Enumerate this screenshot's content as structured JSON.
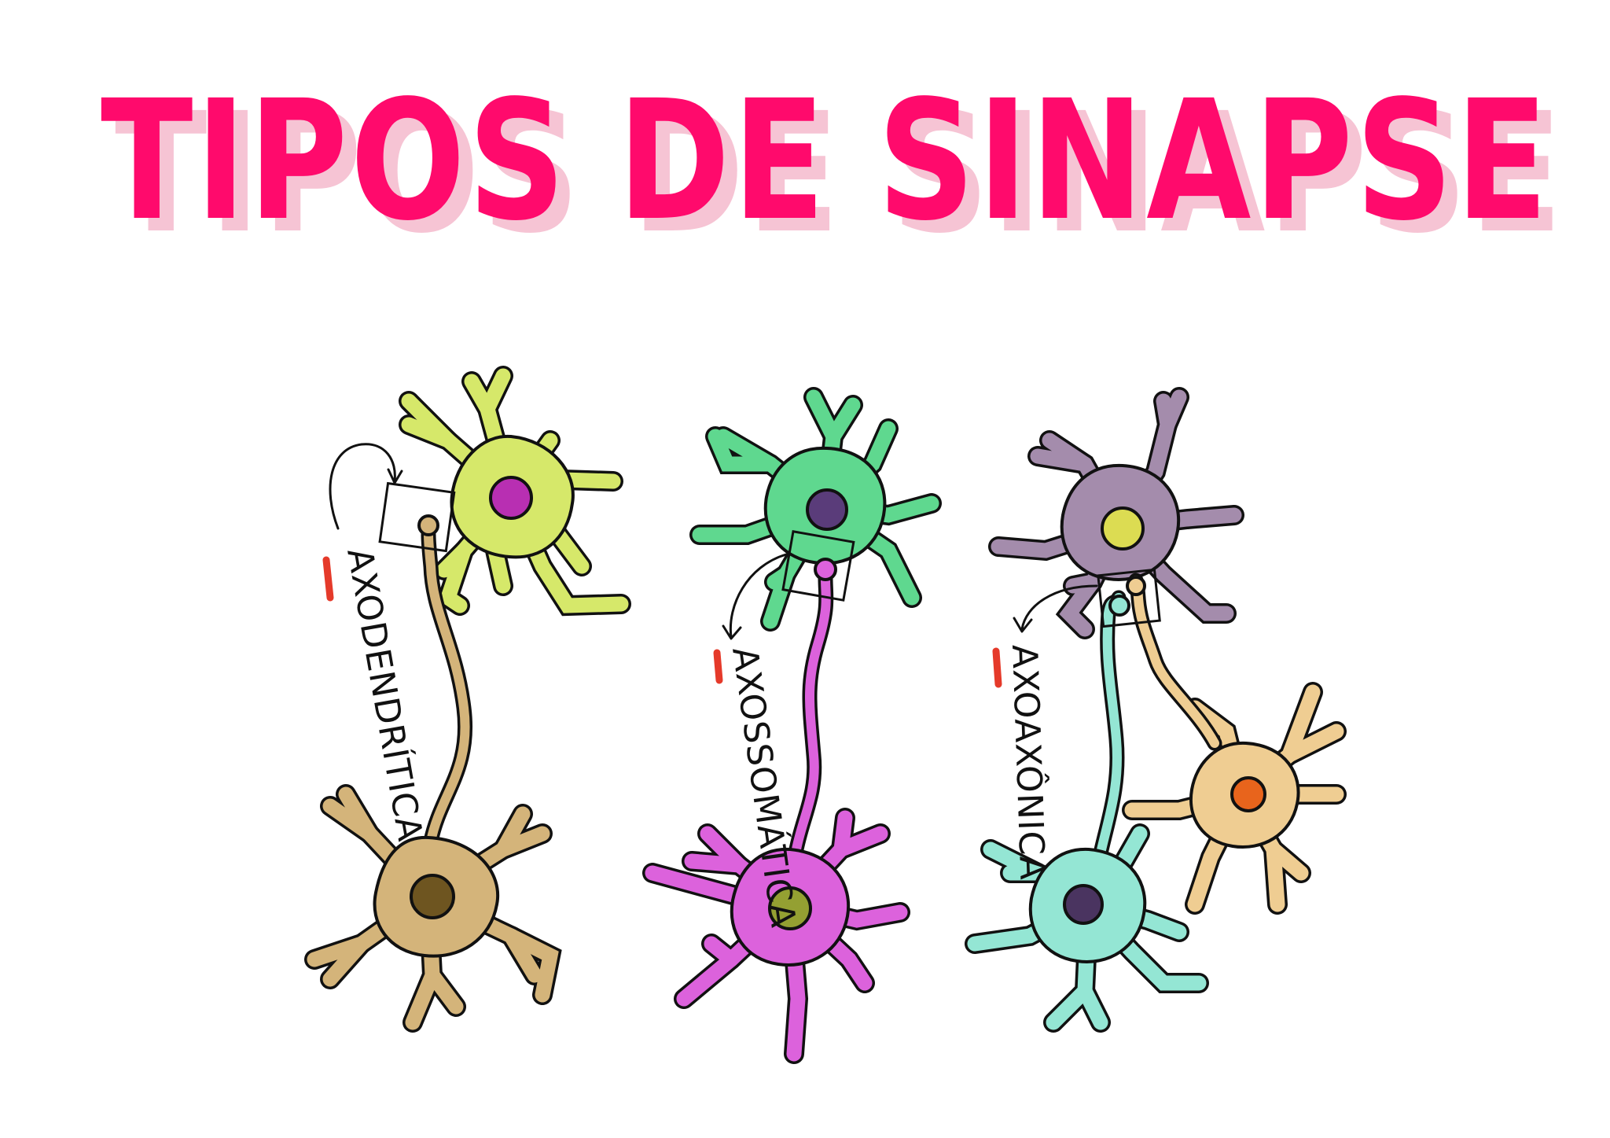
{
  "title": "TIPOS DE SINAPSE",
  "synapses": [
    {
      "label": "AXODENDRÍTICA"
    },
    {
      "label": "AXOSSOMÁTICA"
    },
    {
      "label": "AXOAXÔNICA"
    }
  ],
  "colors": {
    "title": "#ff0a6c",
    "title_shadow": "#f6c4d4",
    "marker": "#e53a2a",
    "neuron_yellow_green": "#d6e86a",
    "neuron_tan": "#d4b47a",
    "neuron_green": "#5fd88f",
    "neuron_magenta": "#dc62dc",
    "neuron_purple": "#a48cac",
    "neuron_peach": "#efcd92",
    "neuron_aqua": "#94e6d4",
    "nucleus_magenta": "#b82fb2",
    "nucleus_brown": "#6e5520",
    "nucleus_indigo": "#5a3c7a",
    "nucleus_olive": "#94a032",
    "nucleus_yellow": "#dcdc52",
    "nucleus_orange": "#e8641c",
    "nucleus_dark": "#4a3460"
  }
}
